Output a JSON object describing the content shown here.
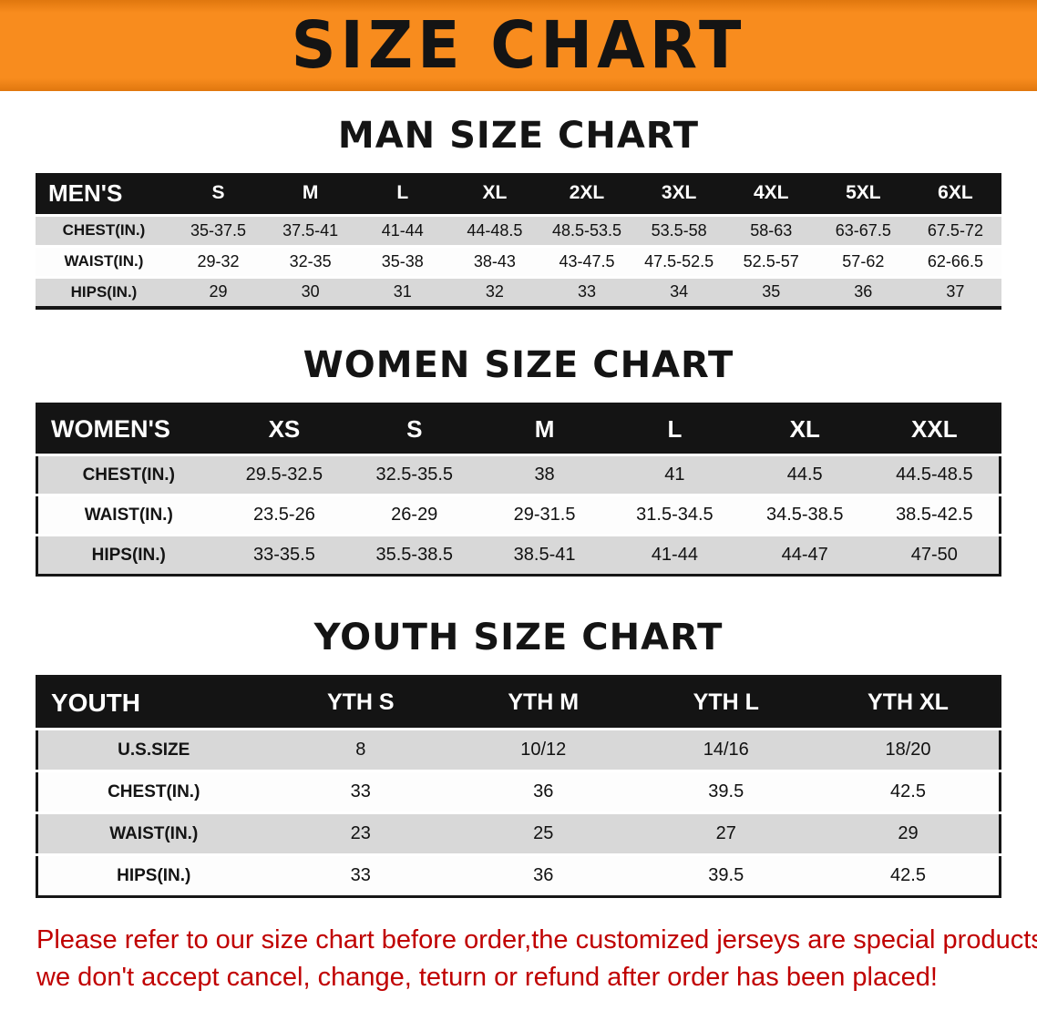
{
  "banner": {
    "title": "SIZE CHART",
    "bg_color": "#f6861d",
    "text_color": "#141414"
  },
  "sections": [
    {
      "heading": "MAN SIZE CHART",
      "table": {
        "header": [
          "MEN'S",
          "S",
          "M",
          "L",
          "XL",
          "2XL",
          "3XL",
          "4XL",
          "5XL",
          "6XL"
        ],
        "rows": [
          {
            "label": "CHEST(IN.)",
            "values": [
              "35-37.5",
              "37.5-41",
              "41-44",
              "44-48.5",
              "48.5-53.5",
              "53.5-58",
              "58-63",
              "63-67.5",
              "67.5-72"
            ]
          },
          {
            "label": "WAIST(IN.)",
            "values": [
              "29-32",
              "32-35",
              "35-38",
              "38-43",
              "43-47.5",
              "47.5-52.5",
              "52.5-57",
              "57-62",
              "62-66.5"
            ]
          },
          {
            "label": "HIPS(IN.)",
            "values": [
              "29",
              "30",
              "31",
              "32",
              "33",
              "34",
              "35",
              "36",
              "37"
            ]
          }
        ]
      }
    },
    {
      "heading": "WOMEN SIZE CHART",
      "table": {
        "header": [
          "WOMEN'S",
          "XS",
          "S",
          "M",
          "L",
          "XL",
          "XXL"
        ],
        "rows": [
          {
            "label": "CHEST(IN.)",
            "values": [
              "29.5-32.5",
              "32.5-35.5",
              "38",
              "41",
              "44.5",
              "44.5-48.5"
            ]
          },
          {
            "label": "WAIST(IN.)",
            "values": [
              "23.5-26",
              "26-29",
              "29-31.5",
              "31.5-34.5",
              "34.5-38.5",
              "38.5-42.5"
            ]
          },
          {
            "label": "HIPS(IN.)",
            "values": [
              "33-35.5",
              "35.5-38.5",
              "38.5-41",
              "41-44",
              "44-47",
              "47-50"
            ]
          }
        ]
      }
    },
    {
      "heading": "YOUTH SIZE CHART",
      "table": {
        "header": [
          "YOUTH",
          "YTH S",
          "YTH M",
          "YTH L",
          "YTH XL"
        ],
        "rows": [
          {
            "label": "U.S.SIZE",
            "values": [
              "8",
              "10/12",
              "14/16",
              "18/20"
            ]
          },
          {
            "label": "CHEST(IN.)",
            "values": [
              "33",
              "36",
              "39.5",
              "42.5"
            ]
          },
          {
            "label": "WAIST(IN.)",
            "values": [
              "23",
              "25",
              "27",
              "29"
            ]
          },
          {
            "label": "HIPS(IN.)",
            "values": [
              "33",
              "36",
              "39.5",
              "42.5"
            ]
          }
        ]
      }
    }
  ],
  "footer": {
    "line1": "Please refer to our size chart before order,the customized jerseys are special products,",
    "line2": "we don't accept cancel, change, teturn or refund after order has been placed!",
    "text_color": "#c00000"
  }
}
